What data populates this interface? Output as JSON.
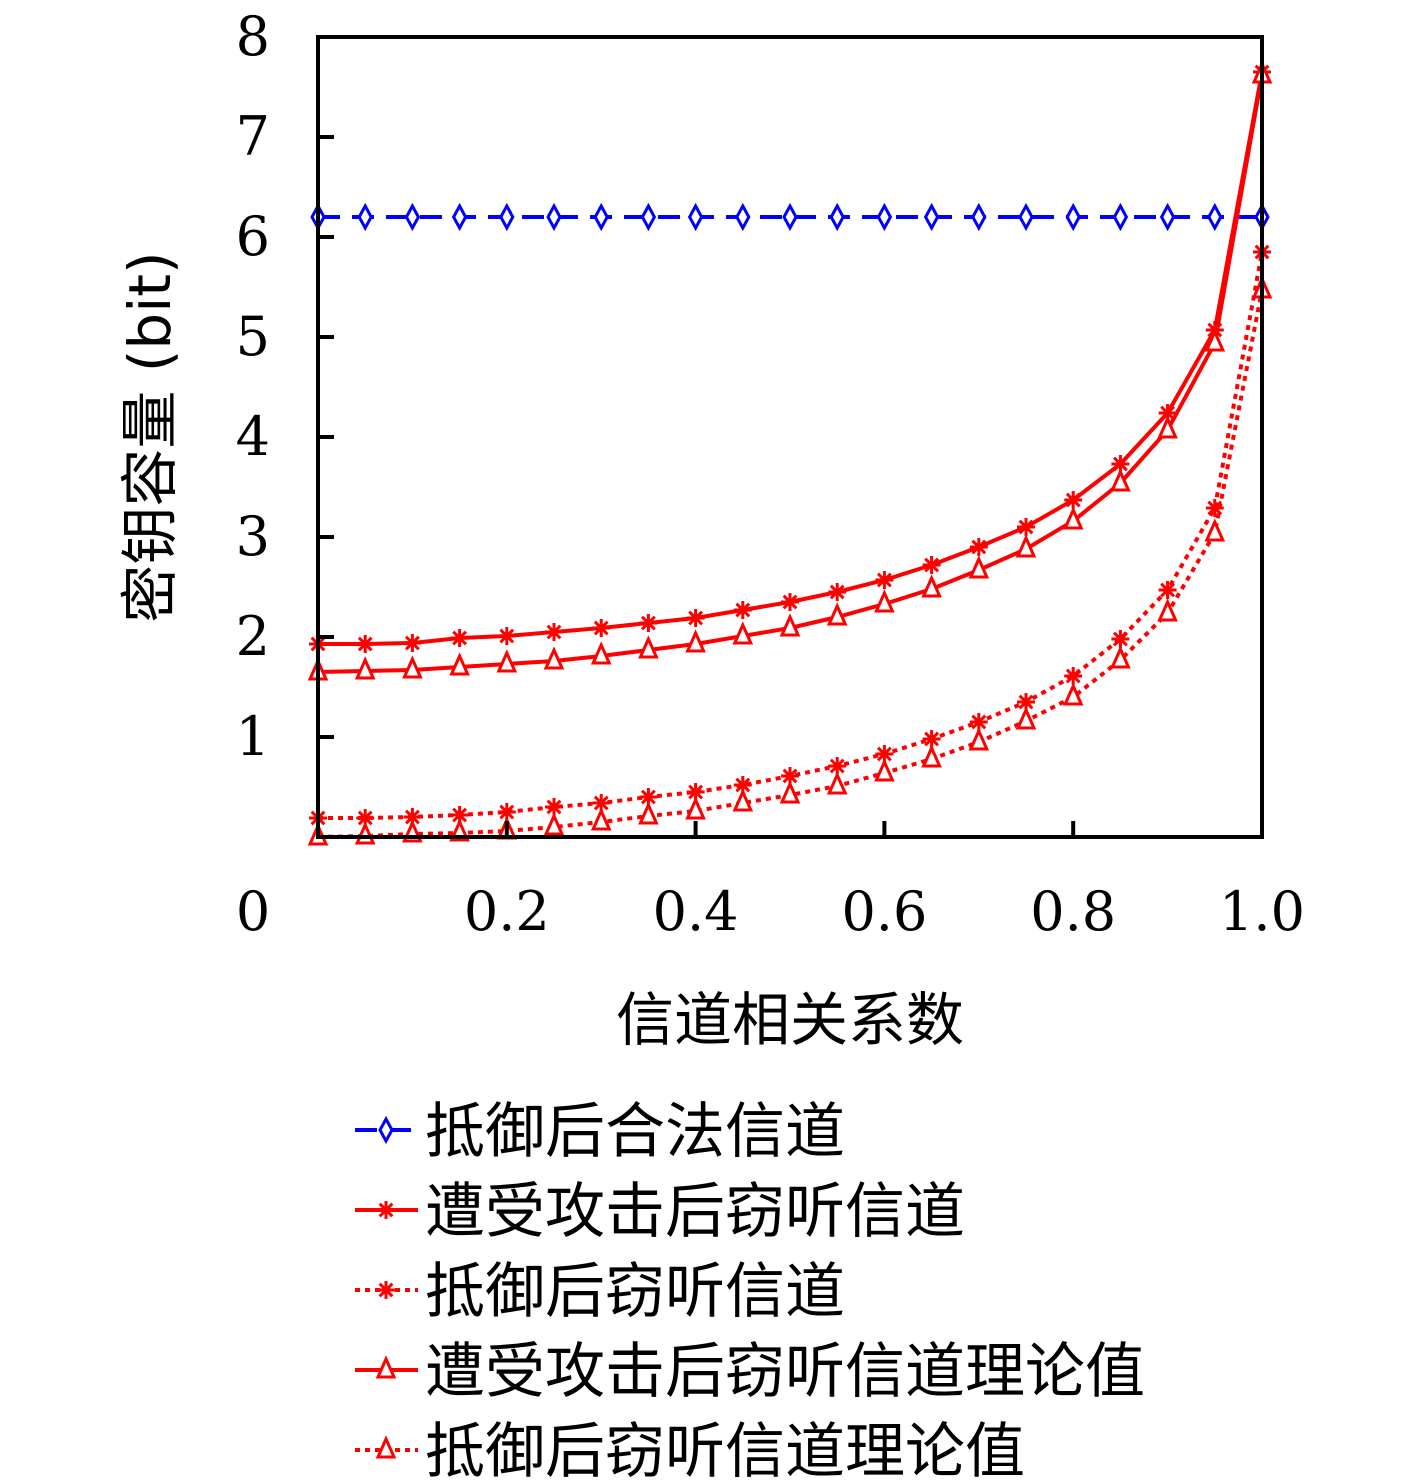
{
  "chart_data": {
    "type": "line",
    "title": "",
    "xlabel": "信道相关系数",
    "ylabel": "密钥容量 (bit)",
    "xlim": [
      0,
      1.0
    ],
    "ylim": [
      0,
      8
    ],
    "x_ticks": [
      "0",
      "0.2",
      "0.4",
      "0.6",
      "0.8",
      "1.0"
    ],
    "y_ticks": [
      "1",
      "2",
      "3",
      "4",
      "5",
      "6",
      "7",
      "8"
    ],
    "grid": false,
    "legend_position": "below",
    "x": [
      0,
      0.05,
      0.1,
      0.15,
      0.2,
      0.25,
      0.3,
      0.35,
      0.4,
      0.45,
      0.5,
      0.55,
      0.6,
      0.65,
      0.7,
      0.75,
      0.8,
      0.85,
      0.9,
      0.95,
      1.0
    ],
    "series": [
      {
        "name": "抵御后合法信道",
        "color": "#0000ff",
        "line": "dashed",
        "marker": "diamond",
        "values": [
          6.2,
          6.2,
          6.2,
          6.2,
          6.2,
          6.2,
          6.2,
          6.2,
          6.2,
          6.2,
          6.2,
          6.2,
          6.2,
          6.2,
          6.2,
          6.2,
          6.2,
          6.2,
          6.2,
          6.2,
          6.2
        ]
      },
      {
        "name": "遭受攻击后窃听信道",
        "color": "#ff0000",
        "line": "solid",
        "marker": "star",
        "values": [
          1.93,
          1.93,
          1.94,
          1.99,
          2.01,
          2.05,
          2.09,
          2.14,
          2.19,
          2.27,
          2.35,
          2.45,
          2.57,
          2.72,
          2.9,
          3.1,
          3.37,
          3.73,
          4.24,
          5.07,
          7.65
        ]
      },
      {
        "name": "抵御后窃听信道",
        "color": "#ff0000",
        "line": "dotted",
        "marker": "star",
        "values": [
          0.19,
          0.19,
          0.2,
          0.22,
          0.25,
          0.3,
          0.34,
          0.4,
          0.45,
          0.52,
          0.61,
          0.71,
          0.83,
          0.98,
          1.15,
          1.35,
          1.61,
          1.98,
          2.47,
          3.29,
          5.85
        ]
      },
      {
        "name": "遭受攻击后窃听信道理论值",
        "color": "#ff0000",
        "line": "solid",
        "marker": "triangle",
        "values": [
          1.65,
          1.66,
          1.67,
          1.7,
          1.73,
          1.76,
          1.81,
          1.87,
          1.93,
          2.01,
          2.09,
          2.2,
          2.33,
          2.48,
          2.67,
          2.88,
          3.16,
          3.54,
          4.07,
          4.94,
          7.62
        ]
      },
      {
        "name": "抵御后窃听信道理论值",
        "color": "#ff0000",
        "line": "dotted",
        "marker": "triangle",
        "values": [
          0.0,
          0.01,
          0.03,
          0.04,
          0.06,
          0.1,
          0.15,
          0.21,
          0.26,
          0.34,
          0.42,
          0.51,
          0.64,
          0.78,
          0.95,
          1.16,
          1.4,
          1.77,
          2.24,
          3.04,
          5.47
        ]
      }
    ]
  }
}
